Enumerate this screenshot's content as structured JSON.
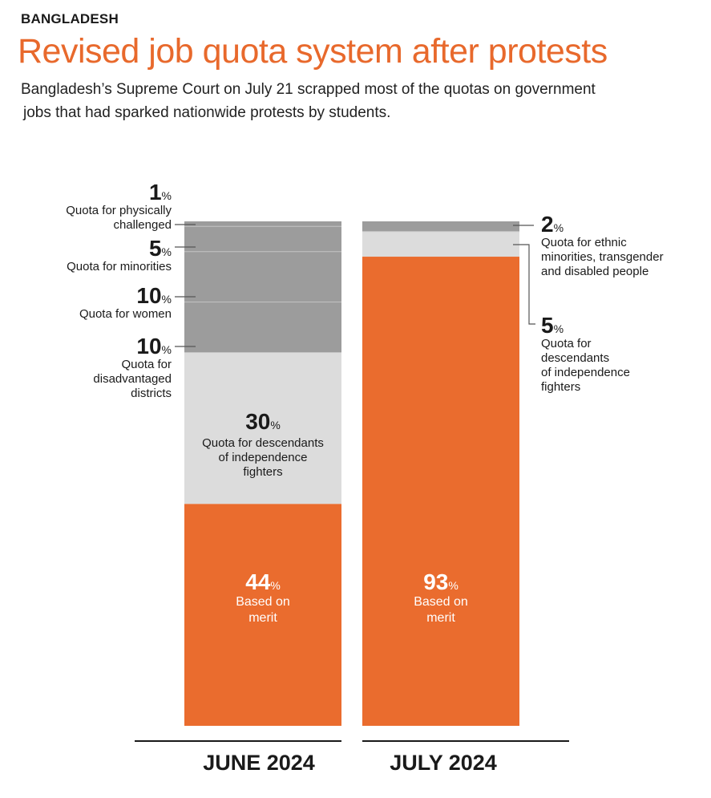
{
  "header": {
    "kicker": "BANGLADESH",
    "title": "Revised job quota system after protests",
    "subtitle_line1": "Bangladesh’s Supreme Court on July 21 scrapped most of the quotas on government",
    "subtitle_line2": "jobs that had sparked nationwide protests by students."
  },
  "chart_data": {
    "type": "bar",
    "subtype": "stacked-100",
    "categories": [
      "JUNE 2024",
      "JULY 2024"
    ],
    "unit": "%",
    "colors": {
      "merit": "#ea6c2e",
      "descendants": "#dcdcdc",
      "other_quota": "#9c9c9c",
      "text_on_orange": "#ffffff"
    },
    "series": [
      {
        "bar": "JUNE 2024",
        "segments": [
          {
            "name": "merit",
            "value": 44,
            "number": "44",
            "label": "Based on merit",
            "line1": "Based on",
            "line2": "merit"
          },
          {
            "name": "descendants",
            "value": 30,
            "number": "30",
            "line1": "Quota for descendants",
            "line2": "of independence",
            "line3": "fighters"
          },
          {
            "name": "districts",
            "value": 10,
            "number": "10",
            "line1": "Quota for",
            "line2": "disadvantaged",
            "line3": "districts"
          },
          {
            "name": "women",
            "value": 10,
            "number": "10",
            "line1": "Quota for women"
          },
          {
            "name": "minorities",
            "value": 5,
            "number": "5",
            "line1": "Quota for minorities"
          },
          {
            "name": "physically-challenged",
            "value": 1,
            "number": "1",
            "line1": "Quota for physically",
            "line2": "challenged"
          }
        ]
      },
      {
        "bar": "JULY 2024",
        "segments": [
          {
            "name": "merit",
            "value": 93,
            "number": "93",
            "label": "Based on merit",
            "line1": "Based on",
            "line2": "merit"
          },
          {
            "name": "descendants",
            "value": 5,
            "number": "5",
            "line1": "Quota for",
            "line2": "descendants",
            "line3": "of independence",
            "line4": "fighters"
          },
          {
            "name": "ethnic-minorities",
            "value": 2,
            "number": "2",
            "line1": "Quota for ethnic",
            "line2": "minorities, transgender",
            "line3": "and disabled people"
          }
        ]
      }
    ],
    "pct_symbol": "%"
  }
}
